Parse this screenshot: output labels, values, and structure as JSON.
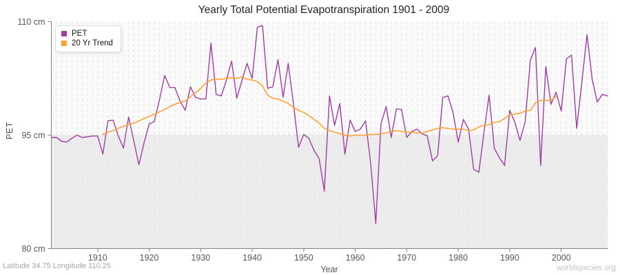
{
  "footer": {
    "left": "Latitude 34.75 Longitude 110.25",
    "right": "worldspecies.org"
  },
  "colors": {
    "pet_line": "#A03CA3",
    "trend_line": "#FFA133",
    "band_below_95": "#ECECEC",
    "plot_background": "#FAFAFA",
    "grid": "#E3E3E3",
    "grid_95_line": "#DFDFDF",
    "axis": "#808080",
    "title_text": "#222222",
    "tick_text": "#555555",
    "footer_text": "#A6A6A6",
    "watermark_text": "#C4C4C4"
  },
  "chart_data": {
    "type": "line",
    "title": "Yearly Total Potential Evapotranspiration 1901 - 2009",
    "xlabel": "Year",
    "ylabel": "PET",
    "xlim": [
      1901,
      2009
    ],
    "ylim": [
      80,
      110
    ],
    "grid": "vertical-dashed-every-year",
    "legend_position": "top-left",
    "shaded_band": {
      "from": 80,
      "to": 95
    },
    "x_ticks": [
      1910,
      1920,
      1930,
      1940,
      1950,
      1960,
      1970,
      1980,
      1990,
      2000
    ],
    "y_ticks": [
      {
        "value": 110,
        "label": "110 cm"
      },
      {
        "value": 95,
        "label": "95 cm"
      },
      {
        "value": 80,
        "label": "80 cm"
      }
    ],
    "series": [
      {
        "name": "PET",
        "color": "#A03CA3",
        "start_year": 1901,
        "values": [
          94.7,
          94.7,
          94.2,
          94.1,
          94.6,
          95.0,
          94.7,
          94.8,
          94.9,
          94.9,
          92.5,
          96.9,
          97.0,
          94.9,
          93.3,
          97.4,
          94.3,
          91.1,
          94.0,
          96.5,
          96.8,
          99.7,
          102.9,
          101.3,
          101.3,
          99.5,
          98.3,
          101.4,
          100.0,
          99.8,
          99.8,
          107.2,
          100.4,
          100.2,
          102.3,
          104.8,
          99.9,
          102.2,
          104.5,
          102.5,
          109.3,
          109.5,
          101.2,
          101.4,
          105.0,
          100.0,
          104.5,
          99.2,
          93.4,
          95.1,
          94.6,
          93.0,
          91.9,
          87.6,
          100.2,
          96.3,
          99.2,
          92.5,
          97.0,
          95.5,
          95.8,
          96.9,
          91.3,
          83.3,
          96.5,
          98.8,
          94.7,
          98.5,
          98.4,
          94.7,
          95.5,
          95.8,
          95.2,
          94.9,
          91.6,
          92.3,
          100.0,
          100.2,
          98.0,
          94.1,
          97.1,
          95.8,
          90.5,
          90.1,
          95.4,
          100.3,
          93.3,
          92.0,
          91.0,
          98.3,
          96.7,
          94.3,
          96.8,
          104.9,
          106.6,
          91.0,
          104.1,
          99.1,
          100.7,
          98.2,
          105.1,
          105.6,
          95.9,
          102.0,
          108.3,
          102.4,
          99.4,
          100.4,
          100.2
        ]
      },
      {
        "name": "20 Yr Trend",
        "color": "#FFA133",
        "start_year": 1911,
        "values": [
          95.1,
          95.4,
          95.6,
          95.9,
          96.2,
          96.4,
          96.6,
          96.9,
          97.2,
          97.5,
          97.8,
          98.1,
          98.4,
          98.8,
          99.1,
          99.3,
          99.5,
          100.1,
          100.6,
          101.2,
          101.9,
          102.3,
          102.4,
          102.4,
          102.5,
          102.6,
          102.5,
          102.7,
          102.4,
          102.3,
          102.1,
          101.5,
          100.3,
          99.9,
          99.8,
          99.5,
          99.2,
          98.7,
          98.3,
          98.0,
          97.6,
          97.1,
          96.6,
          95.9,
          95.6,
          95.4,
          95.2,
          95.0,
          94.9,
          95.0,
          95.0,
          95.0,
          95.1,
          95.1,
          95.2,
          95.3,
          95.5,
          95.6,
          95.5,
          95.4,
          95.4,
          95.3,
          95.3,
          95.5,
          95.7,
          95.9,
          96.0,
          95.9,
          95.8,
          95.8,
          95.8,
          95.6,
          95.7,
          96.1,
          96.3,
          96.4,
          96.7,
          96.8,
          97.2,
          97.7,
          97.8,
          97.9,
          98.2,
          98.3,
          99.3,
          99.6,
          99.6,
          99.6,
          100.1
        ]
      }
    ]
  }
}
